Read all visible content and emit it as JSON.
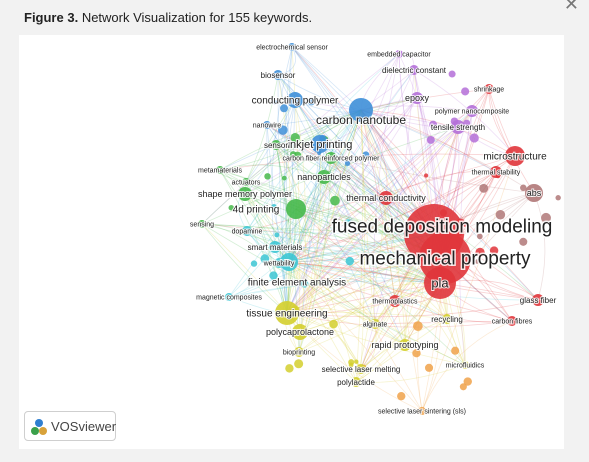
{
  "figure": {
    "label": "Figure 3.",
    "title": "Network Visualization for 155 keywords."
  },
  "close_icon": "close-icon",
  "software_badge": {
    "text": "VOSviewer",
    "icon": "vosviewer-logo-icon"
  },
  "colors": {
    "red": "#e0353b",
    "blue": "#3e8fd8",
    "green": "#45b84a",
    "yellow": "#d4cf2e",
    "purple": "#b46fd8",
    "cyan": "#3cc6d4",
    "brown": "#b07878",
    "orange": "#f0a24a"
  },
  "clusters": [
    "red",
    "blue",
    "green",
    "yellow",
    "purple",
    "cyan",
    "brown",
    "orange"
  ],
  "keywords": [
    {
      "label": "fused deposition modeling",
      "cluster": "red"
    },
    {
      "label": "mechanical property",
      "cluster": "red"
    },
    {
      "label": "pla",
      "cluster": "red"
    },
    {
      "label": "abs",
      "cluster": "brown"
    },
    {
      "label": "microstructure",
      "cluster": "red"
    },
    {
      "label": "thermal stability",
      "cluster": "red"
    },
    {
      "label": "thermal conductivity",
      "cluster": "red"
    },
    {
      "label": "glass fiber",
      "cluster": "red"
    },
    {
      "label": "carbon fibres",
      "cluster": "red"
    },
    {
      "label": "recycling",
      "cluster": "yellow"
    },
    {
      "label": "thermoplastics",
      "cluster": "red"
    },
    {
      "label": "shrinkage",
      "cluster": "red"
    },
    {
      "label": "polymer nanocomposite",
      "cluster": "purple"
    },
    {
      "label": "tensile strength",
      "cluster": "purple"
    },
    {
      "label": "epoxy",
      "cluster": "purple"
    },
    {
      "label": "dielectric constant",
      "cluster": "purple"
    },
    {
      "label": "embedded capacitor",
      "cluster": "purple"
    },
    {
      "label": "carbon nanotube",
      "cluster": "blue"
    },
    {
      "label": "conducting polymer",
      "cluster": "blue"
    },
    {
      "label": "inkjet printing",
      "cluster": "blue"
    },
    {
      "label": "biosensor",
      "cluster": "blue"
    },
    {
      "label": "electrochemical sensor",
      "cluster": "blue"
    },
    {
      "label": "nanowire",
      "cluster": "blue"
    },
    {
      "label": "sensor",
      "cluster": "green"
    },
    {
      "label": "carbon fiber reinforced polymer",
      "cluster": "green"
    },
    {
      "label": "nanoparticles",
      "cluster": "green"
    },
    {
      "label": "metamaterials",
      "cluster": "green"
    },
    {
      "label": "actuators",
      "cluster": "green"
    },
    {
      "label": "shape memory polymer",
      "cluster": "green"
    },
    {
      "label": "4d printing",
      "cluster": "green"
    },
    {
      "label": "sensing",
      "cluster": "green"
    },
    {
      "label": "dopamine",
      "cluster": "cyan"
    },
    {
      "label": "smart materials",
      "cluster": "cyan"
    },
    {
      "label": "wettability",
      "cluster": "cyan"
    },
    {
      "label": "finite element analysis",
      "cluster": "cyan"
    },
    {
      "label": "magnetic composites",
      "cluster": "cyan"
    },
    {
      "label": "tissue engineering",
      "cluster": "yellow"
    },
    {
      "label": "polycaprolactone",
      "cluster": "yellow"
    },
    {
      "label": "bioprinting",
      "cluster": "yellow"
    },
    {
      "label": "alginate",
      "cluster": "yellow"
    },
    {
      "label": "rapid prototyping",
      "cluster": "yellow"
    },
    {
      "label": "selective laser melting",
      "cluster": "yellow"
    },
    {
      "label": "polylactide",
      "cluster": "yellow"
    },
    {
      "label": "microfluidics",
      "cluster": "yellow"
    },
    {
      "label": "selective laser sintering (sls)",
      "cluster": "orange"
    }
  ]
}
